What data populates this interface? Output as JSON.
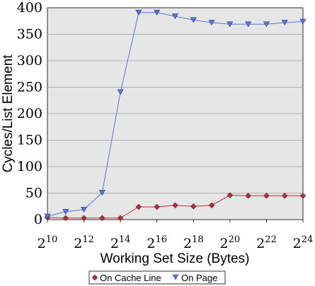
{
  "chart_data": {
    "type": "line",
    "title": "",
    "xlabel": "Working Set Size (Bytes)",
    "ylabel": "Cycles/List Element",
    "x": [
      10,
      11,
      12,
      13,
      14,
      15,
      16,
      17,
      18,
      19,
      20,
      21,
      22,
      23,
      24
    ],
    "xlim": [
      10,
      24
    ],
    "ylim": [
      0,
      400
    ],
    "x_ticks": [
      {
        "base": "2",
        "exp": "10",
        "value": 10
      },
      {
        "base": "2",
        "exp": "12",
        "value": 12
      },
      {
        "base": "2",
        "exp": "14",
        "value": 14
      },
      {
        "base": "2",
        "exp": "16",
        "value": 16
      },
      {
        "base": "2",
        "exp": "18",
        "value": 18
      },
      {
        "base": "2",
        "exp": "20",
        "value": 20
      },
      {
        "base": "2",
        "exp": "22",
        "value": 22
      },
      {
        "base": "2",
        "exp": "24",
        "value": 24
      }
    ],
    "y_ticks": [
      "0",
      "50",
      "100",
      "150",
      "200",
      "250",
      "300",
      "350",
      "400"
    ],
    "grid": "horizontal",
    "legend_position": "bottom",
    "background_color": "#e6e6e6",
    "series": [
      {
        "name": "On Cache Line",
        "marker": "diamond",
        "color": "#b03040",
        "values": [
          4,
          3,
          3,
          3,
          3,
          24,
          24,
          27,
          25,
          27,
          46,
          45,
          45,
          45,
          45
        ]
      },
      {
        "name": "On Page",
        "marker": "triangle-down",
        "color": "#5577dd",
        "values": [
          6,
          15,
          19,
          51,
          241,
          391,
          391,
          384,
          377,
          372,
          369,
          369,
          369,
          372,
          374
        ]
      }
    ]
  }
}
